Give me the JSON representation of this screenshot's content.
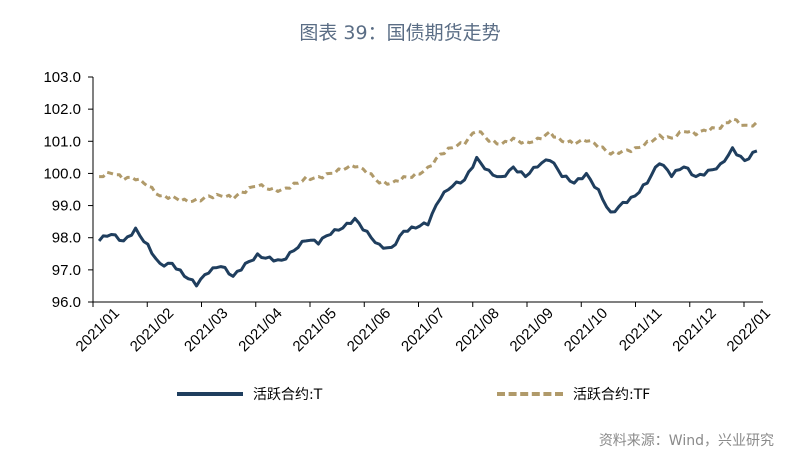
{
  "title": "图表 39：国债期货走势",
  "source": "资料来源：Wind，兴业研究",
  "colors": {
    "t": "#1f3e5e",
    "tf": "#b09a6a",
    "title": "#5a6d85"
  },
  "chart_data": {
    "type": "line",
    "title": "图表 39：国债期货走势",
    "xlabel": "",
    "ylabel": "",
    "ylim": [
      96.0,
      103.0
    ],
    "yticks": [
      "103.0",
      "102.0",
      "101.0",
      "100.0",
      "99.0",
      "98.0",
      "97.0",
      "96.0"
    ],
    "xticks": [
      "2021/01",
      "2021/02",
      "2021/03",
      "2021/04",
      "2021/05",
      "2021/06",
      "2021/07",
      "2021/08",
      "2021/09",
      "2021/10",
      "2021/11",
      "2021/12",
      "2022/01"
    ],
    "grid": false,
    "legend": "bottom",
    "x": [
      "2021/01/04",
      "2021/01/11",
      "2021/01/18",
      "2021/01/25",
      "2021/02/01",
      "2021/02/08",
      "2021/02/15",
      "2021/02/22",
      "2021/03/01",
      "2021/03/08",
      "2021/03/15",
      "2021/03/22",
      "2021/03/29",
      "2021/04/05",
      "2021/04/12",
      "2021/04/19",
      "2021/04/26",
      "2021/05/03",
      "2021/05/10",
      "2021/05/17",
      "2021/05/24",
      "2021/05/31",
      "2021/06/07",
      "2021/06/14",
      "2021/06/21",
      "2021/06/28",
      "2021/07/05",
      "2021/07/12",
      "2021/07/19",
      "2021/07/26",
      "2021/08/02",
      "2021/08/09",
      "2021/08/16",
      "2021/08/23",
      "2021/08/30",
      "2021/09/06",
      "2021/09/13",
      "2021/09/20",
      "2021/09/27",
      "2021/10/04",
      "2021/10/11",
      "2021/10/18",
      "2021/10/25",
      "2021/11/01",
      "2021/11/08",
      "2021/11/15",
      "2021/11/22",
      "2021/11/29",
      "2021/12/06",
      "2021/12/13",
      "2021/12/20",
      "2021/12/27",
      "2022/01/03",
      "2022/01/10",
      "2022/01/17"
    ],
    "series": [
      {
        "name": "活跃合约:T",
        "values": [
          97.9,
          98.1,
          97.9,
          98.3,
          97.8,
          97.2,
          97.2,
          96.8,
          96.5,
          96.9,
          97.1,
          96.8,
          97.2,
          97.5,
          97.4,
          97.3,
          97.6,
          97.9,
          97.8,
          98.1,
          98.3,
          98.6,
          98.2,
          97.8,
          97.7,
          98.2,
          98.3,
          98.4,
          99.2,
          99.6,
          99.8,
          100.5,
          100.1,
          99.9,
          100.2,
          99.9,
          100.2,
          100.4,
          99.9,
          99.7,
          100.0,
          99.5,
          98.8,
          99.1,
          99.3,
          99.7,
          100.3,
          99.9,
          100.2,
          99.9,
          100.1,
          100.3,
          100.8,
          100.4,
          100.7
        ]
      },
      {
        "name": "活跃合约:TF",
        "values": [
          99.9,
          100.0,
          99.8,
          99.8,
          99.6,
          99.3,
          99.3,
          99.2,
          99.2,
          99.3,
          99.3,
          99.2,
          99.4,
          99.6,
          99.5,
          99.5,
          99.7,
          99.9,
          99.9,
          100.0,
          100.1,
          100.2,
          100.0,
          99.7,
          99.7,
          99.9,
          100.0,
          100.2,
          100.6,
          100.8,
          100.9,
          101.3,
          101.0,
          100.9,
          101.1,
          101.0,
          101.1,
          101.3,
          101.0,
          100.9,
          101.0,
          100.8,
          100.6,
          100.7,
          100.8,
          101.0,
          101.2,
          101.1,
          101.3,
          101.2,
          101.3,
          101.4,
          101.7,
          101.5,
          101.6
        ]
      }
    ]
  }
}
